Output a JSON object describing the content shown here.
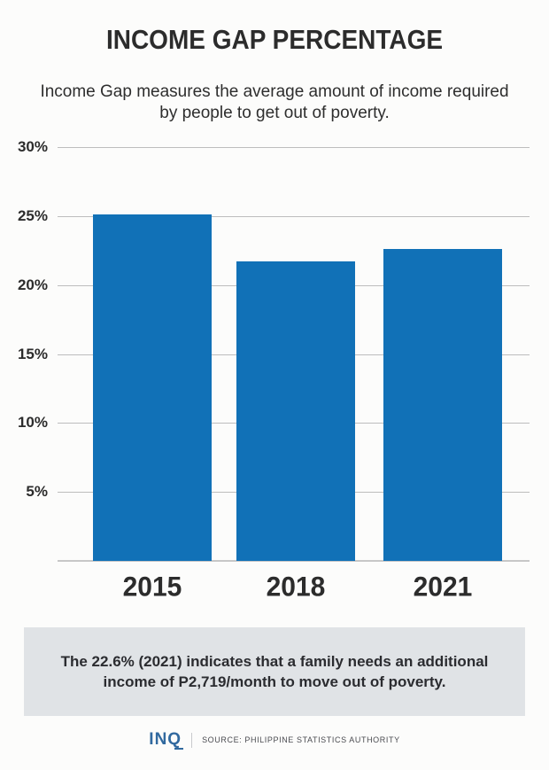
{
  "header": {
    "title": "INCOME GAP PERCENTAGE",
    "subtitle_line1": "Income Gap measures the average amount of income required",
    "subtitle_line2": "by people to get out of poverty."
  },
  "chart_data": {
    "type": "bar",
    "title": "INCOME GAP PERCENTAGE",
    "categories": [
      "2015",
      "2018",
      "2021"
    ],
    "values": [
      25.1,
      21.7,
      22.6
    ],
    "unit": "%",
    "xlabel": "",
    "ylabel": "",
    "ylim": [
      0,
      30
    ],
    "y_ticks": [
      "30%",
      "25%",
      "20%",
      "15%",
      "10%",
      "5%"
    ],
    "grid": true,
    "legend": "none",
    "bar_color": "#1171b7"
  },
  "note": {
    "line1": "The 22.6% (2021) indicates that a family needs an additional",
    "line2": "income of P2,719/month to move out of poverty."
  },
  "footer": {
    "logo": "INQ",
    "source": "SOURCE: PHILIPPINE STATISTICS AUTHORITY"
  },
  "colors": {
    "bar_blue": "#1171b7",
    "background": "#fcfcfb",
    "note_background": "#e0e3e6",
    "text_dark": "#2c2c2c",
    "gridline": "#bdbdbd",
    "logo_blue": "#31699f"
  }
}
